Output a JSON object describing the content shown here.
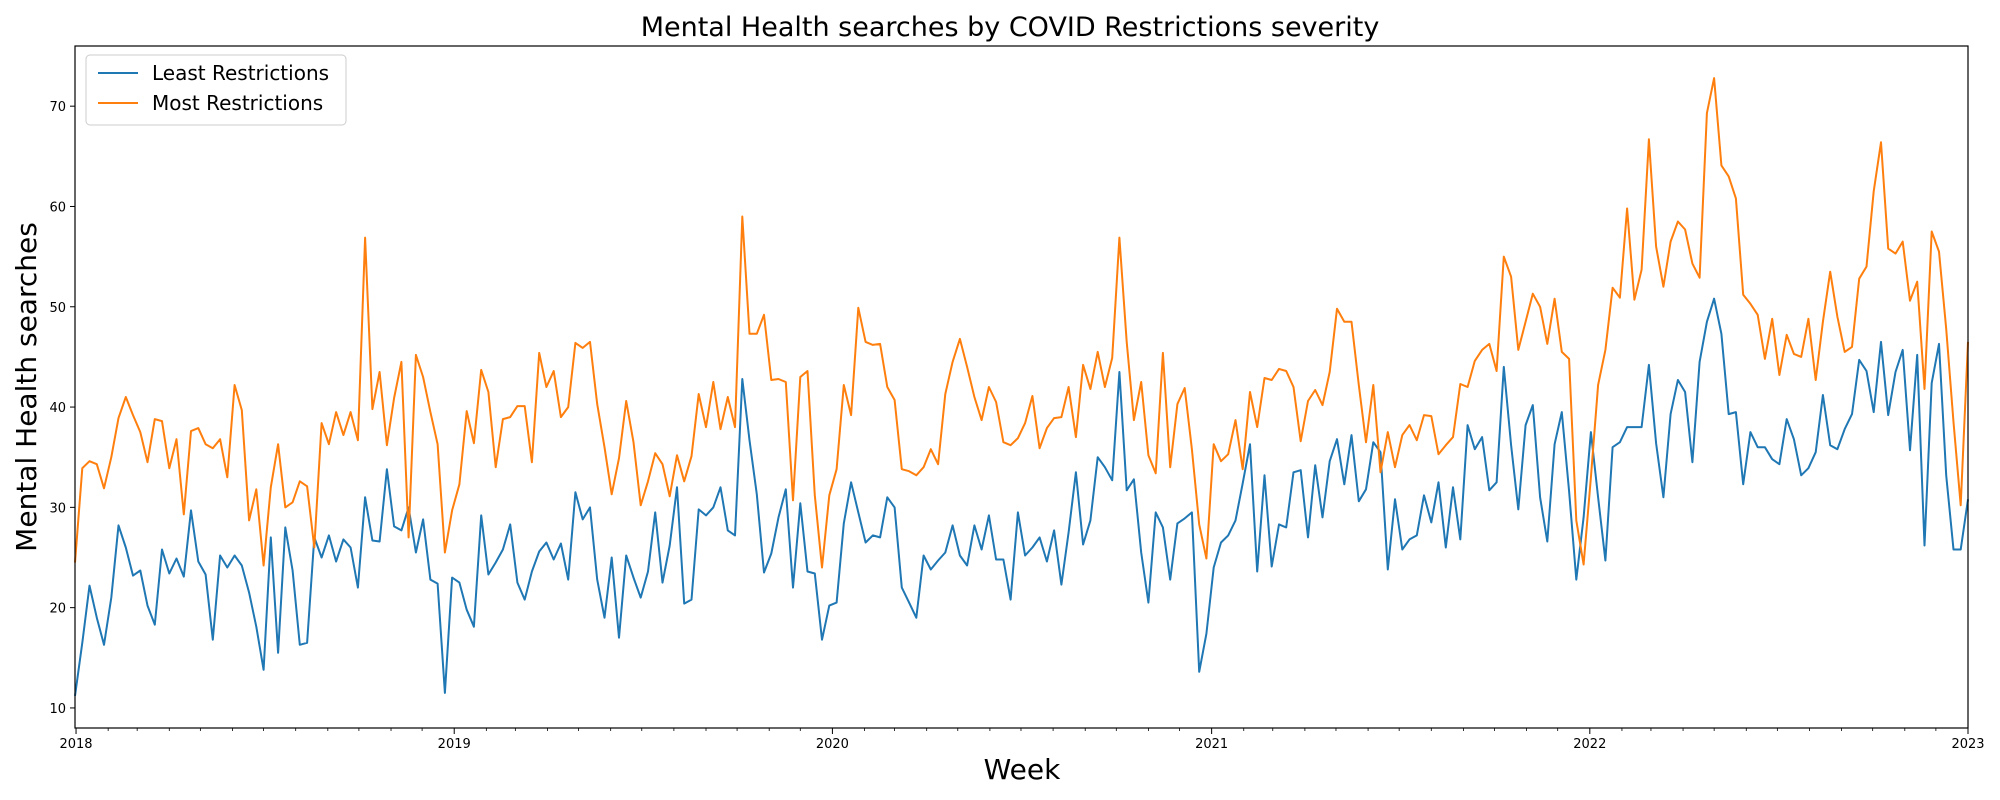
{
  "chart_data": {
    "type": "line",
    "title": "Mental Health searches by COVID Restrictions severity",
    "xlabel": "Week",
    "ylabel": "Mental Health searches",
    "xlim": [
      "2017-12-31",
      "2023-01-01"
    ],
    "ylim": [
      8,
      76
    ],
    "x_ticks": [
      "2018",
      "2019",
      "2020",
      "2021",
      "2022",
      "2023"
    ],
    "y_ticks": [
      10,
      20,
      30,
      40,
      50,
      60,
      70
    ],
    "legend_position": "top-left",
    "grid": false,
    "x_start": "2017-12-31",
    "x_interval": "weekly",
    "series": [
      {
        "name": "Least Restrictions",
        "color": "#1f77b4",
        "values": [
          11.2,
          16.5,
          22.2,
          19.0,
          16.3,
          21.0,
          28.2,
          26.0,
          23.2,
          23.7,
          20.2,
          18.3,
          25.8,
          23.4,
          24.9,
          23.1,
          29.7,
          24.6,
          23.3,
          16.8,
          25.2,
          24.0,
          25.2,
          24.2,
          21.5,
          18.1,
          13.8,
          27.0,
          15.5,
          28.0,
          23.7,
          16.3,
          16.5,
          27.0,
          25.0,
          27.2,
          24.6,
          26.8,
          26.0,
          22.0,
          31.0,
          26.7,
          26.6,
          33.8,
          28.1,
          27.7,
          30.0,
          25.5,
          28.8,
          22.8,
          22.4,
          11.5,
          23.0,
          22.5,
          19.8,
          18.1,
          29.2,
          23.3,
          24.5,
          25.8,
          28.3,
          22.5,
          20.8,
          23.6,
          25.6,
          26.5,
          24.8,
          26.4,
          22.8,
          31.5,
          28.8,
          30.0,
          22.8,
          19.0,
          25.0,
          17.0,
          25.2,
          23.0,
          21.0,
          23.6,
          29.5,
          22.5,
          26.2,
          32.0,
          20.4,
          20.8,
          29.8,
          29.2,
          30.0,
          32.0,
          27.7,
          27.2,
          42.8,
          36.7,
          31.3,
          23.5,
          25.4,
          29.0,
          31.8,
          22.0,
          30.4,
          23.6,
          23.4,
          16.8,
          20.2,
          20.5,
          28.4,
          32.5,
          29.5,
          26.5,
          27.2,
          27.0,
          31.0,
          30.0,
          22.0,
          20.5,
          19.0,
          25.2,
          23.8,
          24.7,
          25.5,
          28.2,
          25.2,
          24.2,
          28.2,
          25.8,
          29.2,
          24.8,
          24.8,
          20.8,
          29.5,
          25.2,
          26.0,
          27.0,
          24.6,
          27.7,
          22.3,
          27.5,
          33.5,
          26.3,
          28.7,
          35.0,
          34.0,
          32.7,
          43.5,
          31.7,
          32.8,
          25.5,
          20.5,
          29.5,
          28.0,
          22.8,
          28.4,
          28.9,
          29.5,
          13.6,
          17.4,
          24.0,
          26.5,
          27.2,
          28.7,
          32.4,
          36.3,
          23.6,
          33.2,
          24.1,
          28.3,
          28.0,
          33.5,
          33.7,
          27.0,
          34.2,
          29.0,
          34.6,
          36.8,
          32.3,
          37.2,
          30.6,
          31.8,
          36.5,
          35.5,
          23.8,
          30.8,
          25.8,
          26.8,
          27.2,
          31.2,
          28.5,
          32.5,
          26.0,
          32.0,
          26.8,
          38.2,
          35.8,
          37.0,
          31.7,
          32.5,
          44.0,
          36.2,
          29.8,
          38.2,
          40.2,
          31.0,
          26.6,
          36.3,
          39.5,
          31.6,
          22.8,
          29.0,
          37.5,
          31.0,
          24.7,
          36.0,
          36.5,
          38.0,
          38.0,
          38.0,
          44.2,
          36.4,
          31.0,
          39.3,
          42.7,
          41.5,
          34.5,
          44.5,
          48.5,
          50.8,
          47.3,
          39.3,
          39.5,
          32.3,
          37.5,
          36.0,
          36.0,
          34.8,
          34.3,
          38.8,
          36.8,
          33.2,
          33.9,
          35.5,
          41.2,
          36.2,
          35.8,
          37.8,
          39.3,
          44.7,
          43.6,
          39.5,
          46.5,
          39.2,
          43.5,
          45.7,
          35.7,
          45.2,
          26.2,
          42.4,
          46.3,
          33.2,
          25.8,
          25.8,
          30.8
        ]
      },
      {
        "name": "Most Restrictions",
        "color": "#ff7f0e",
        "values": [
          24.5,
          33.9,
          34.6,
          34.3,
          31.9,
          35.0,
          38.9,
          41.0,
          39.2,
          37.5,
          34.5,
          38.8,
          38.6,
          33.9,
          36.8,
          29.3,
          37.6,
          37.9,
          36.3,
          35.9,
          36.8,
          33.0,
          42.2,
          39.7,
          28.7,
          31.8,
          24.2,
          32.0,
          36.3,
          30.0,
          30.5,
          32.6,
          32.1,
          26.0,
          38.4,
          36.3,
          39.5,
          37.2,
          39.5,
          36.7,
          56.9,
          39.8,
          43.5,
          36.2,
          40.9,
          44.5,
          27.0,
          45.2,
          43.0,
          39.5,
          36.3,
          25.5,
          29.7,
          32.3,
          39.6,
          36.4,
          43.7,
          41.5,
          34.0,
          38.8,
          39.0,
          40.1,
          40.1,
          34.5,
          45.4,
          42.0,
          43.6,
          39.0,
          40.0,
          46.4,
          45.9,
          46.5,
          40.3,
          36.0,
          31.3,
          34.9,
          40.6,
          36.5,
          30.2,
          32.6,
          35.4,
          34.3,
          31.1,
          35.2,
          32.6,
          35.1,
          41.3,
          38.0,
          42.5,
          37.8,
          41.0,
          38.0,
          59.0,
          47.3,
          47.3,
          49.2,
          42.7,
          42.8,
          42.5,
          30.7,
          43.0,
          43.6,
          31.2,
          24.0,
          31.2,
          33.8,
          42.2,
          39.2,
          49.9,
          46.5,
          46.2,
          46.3,
          42.0,
          40.7,
          33.8,
          33.6,
          33.2,
          34.0,
          35.8,
          34.3,
          41.3,
          44.5,
          46.8,
          44.0,
          41.0,
          38.7,
          42.0,
          40.5,
          36.5,
          36.2,
          36.9,
          38.4,
          41.1,
          35.9,
          37.9,
          38.9,
          39.0,
          42.0,
          37.0,
          44.2,
          41.8,
          45.5,
          42.0,
          44.9,
          56.9,
          46.5,
          38.7,
          42.5,
          35.2,
          33.4,
          45.4,
          34.0,
          40.3,
          41.9,
          35.8,
          28.3,
          24.9,
          36.3,
          34.6,
          35.3,
          38.7,
          33.8,
          41.5,
          38.0,
          42.9,
          42.7,
          43.8,
          43.6,
          42.0,
          36.6,
          40.6,
          41.7,
          40.2,
          43.5,
          49.8,
          48.5,
          48.5,
          42.2,
          36.5,
          42.2,
          33.5,
          37.5,
          34.0,
          37.2,
          38.2,
          36.7,
          39.2,
          39.1,
          35.3,
          36.2,
          37.0,
          42.3,
          42.0,
          44.6,
          45.7,
          46.3,
          43.6,
          55.0,
          53.0,
          45.7,
          48.5,
          51.3,
          50.0,
          46.3,
          50.8,
          45.5,
          44.8,
          28.7,
          24.3,
          33.0,
          42.2,
          45.7,
          51.9,
          50.9,
          59.8,
          50.7,
          53.7,
          66.7,
          56.0,
          52.0,
          56.5,
          58.5,
          57.7,
          54.3,
          52.9,
          69.3,
          72.8,
          64.1,
          63.0,
          60.8,
          51.2,
          50.3,
          49.2,
          44.8,
          48.8,
          43.2,
          47.2,
          45.3,
          45.0,
          48.8,
          42.7,
          48.5,
          53.5,
          49.0,
          45.5,
          46.0,
          52.8,
          54.0,
          61.5,
          66.4,
          55.8,
          55.3,
          56.5,
          50.6,
          52.5,
          41.8,
          57.5,
          55.5,
          47.8,
          38.5,
          30.2,
          46.5
        ]
      }
    ]
  }
}
